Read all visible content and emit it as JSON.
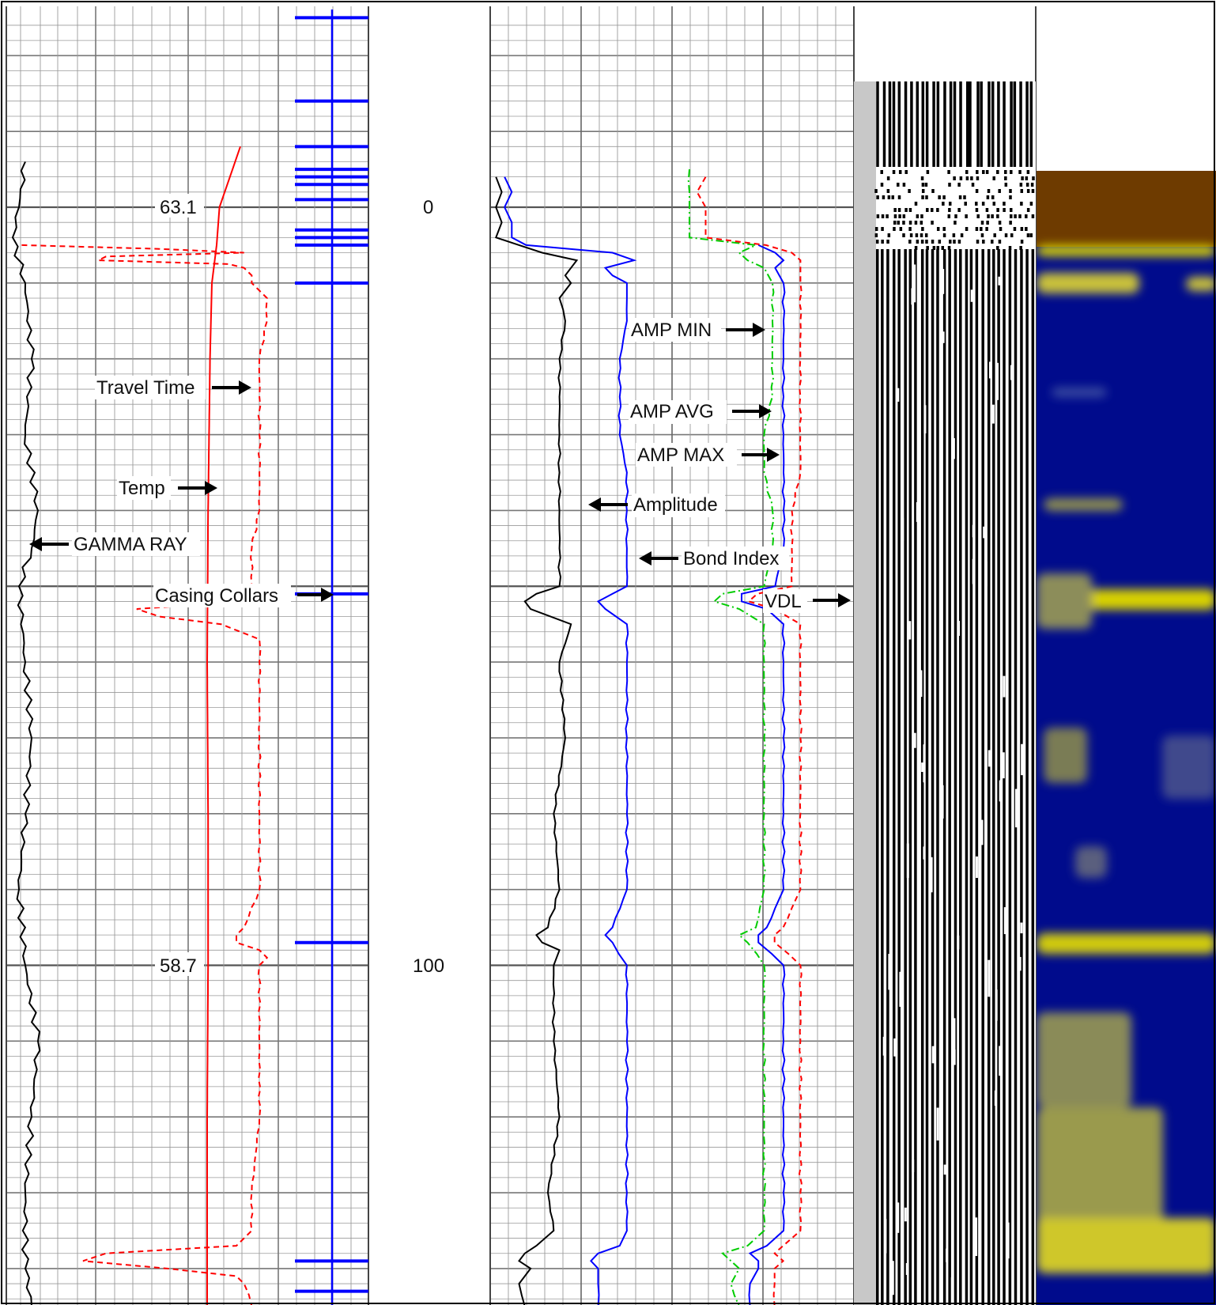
{
  "chart_data": {
    "type": "line",
    "title": "",
    "depth_scale": {
      "labels": [
        "0",
        "100"
      ],
      "depths": [
        0,
        100
      ]
    },
    "temperature_scale": {
      "labels": [
        "63.1",
        "58.7"
      ],
      "values": [
        63.1,
        58.7
      ]
    },
    "annotations": [
      "Travel Time",
      "Temp",
      "GAMMA RAY",
      "Casing Collars",
      "AMP MIN",
      "AMP AVG",
      "AMP MAX",
      "Amplitude",
      "Bond Index",
      "VDL"
    ],
    "casing_collar_depths": [
      -25,
      -14,
      -8,
      -5,
      -4,
      -3,
      -1,
      3,
      4,
      5,
      10,
      51,
      97,
      139,
      143
    ],
    "series": [
      {
        "name": "GAMMA RAY",
        "color": "#000000",
        "style": "solid",
        "depths": [
          -6,
          0,
          4,
          10,
          20,
          30,
          40,
          45,
          50,
          60,
          70,
          80,
          90,
          100,
          110,
          120,
          130,
          140,
          145
        ],
        "values": [
          3,
          2,
          1,
          3,
          4,
          3,
          5,
          4,
          2,
          3,
          4,
          3,
          2,
          3,
          5,
          4,
          3,
          3,
          4
        ]
      },
      {
        "name": "Temp",
        "color": "#ff0000",
        "style": "solid",
        "depths": [
          -8,
          0,
          5,
          10,
          20,
          40,
          60,
          80,
          100,
          120,
          140,
          145
        ],
        "values": [
          65.3,
          63.1,
          62.8,
          62.3,
          62.1,
          61.9,
          61.8,
          61.9,
          61.9,
          61.8,
          61.8,
          61.8
        ]
      },
      {
        "name": "Travel Time",
        "color": "#ff0000",
        "style": "dashed",
        "depths": [
          5,
          5.5,
          6,
          6.5,
          7,
          7.5,
          8,
          9,
          10,
          12,
          15,
          20,
          25,
          30,
          35,
          40,
          45,
          50,
          52,
          53,
          54,
          55,
          57,
          60,
          70,
          80,
          90,
          95,
          96,
          97,
          98,
          99,
          100,
          110,
          120,
          130,
          135,
          137,
          138,
          139,
          140,
          141,
          142,
          145
        ],
        "values": [
          2,
          20,
          31,
          13,
          12,
          29,
          31,
          32,
          32,
          34,
          34,
          33,
          33,
          33,
          33,
          33,
          32,
          32,
          31,
          17,
          20,
          28,
          33,
          33,
          33,
          33,
          33,
          31,
          30,
          30,
          33,
          34,
          33,
          33,
          33,
          32,
          32,
          30,
          13,
          10,
          21,
          30,
          31,
          32
        ]
      },
      {
        "name": "Amplitude",
        "color": "#000000",
        "style": "solid",
        "depths": [
          -4,
          -2,
          0,
          2,
          4,
          5,
          6,
          7,
          8,
          9,
          10,
          12,
          15,
          20,
          25,
          30,
          35,
          40,
          45,
          50,
          51,
          52,
          53,
          55,
          60,
          70,
          80,
          90,
          95,
          96,
          97,
          98,
          100,
          110,
          120,
          130,
          135,
          137,
          138,
          139,
          140,
          141,
          142,
          145
        ],
        "values": [
          1,
          2,
          1,
          2,
          1,
          5,
          9,
          15,
          14,
          13,
          14,
          12,
          13,
          12,
          12,
          12,
          12,
          12,
          12,
          12,
          8,
          6,
          7,
          14,
          12,
          13,
          11,
          12,
          10,
          8,
          9,
          12,
          11,
          11,
          12,
          10,
          11,
          8,
          6,
          5,
          7,
          6,
          5,
          6
        ]
      },
      {
        "name": "Bond Index",
        "color": "#0000ff",
        "style": "solid",
        "depths": [
          -4,
          -2,
          0,
          2,
          4,
          5,
          6,
          7,
          8,
          9,
          10,
          12,
          15,
          20,
          25,
          30,
          35,
          40,
          45,
          50,
          51,
          52,
          53,
          55,
          60,
          70,
          80,
          90,
          95,
          96,
          97,
          100,
          110,
          120,
          130,
          135,
          137,
          138,
          139,
          140,
          141,
          142,
          145
        ],
        "values": [
          2,
          3,
          2,
          3,
          3,
          5,
          17,
          20,
          16,
          17,
          19,
          19,
          19,
          18,
          18,
          18,
          19,
          19,
          19,
          19,
          17,
          15,
          16,
          19,
          19,
          19,
          19,
          19,
          17,
          16,
          17,
          19,
          19,
          19,
          19,
          19,
          18,
          15,
          14,
          15,
          15,
          15,
          15
        ]
      },
      {
        "name": "AMP MIN",
        "color": "#00cc00",
        "style": "dashdot",
        "depths": [
          -5,
          -2,
          0,
          2,
          4,
          5,
          6,
          7,
          8,
          10,
          15,
          20,
          25,
          30,
          35,
          40,
          45,
          50,
          51,
          52,
          53,
          55,
          60,
          70,
          80,
          90,
          95,
          96,
          97,
          100,
          110,
          120,
          130,
          135,
          137,
          138,
          139,
          140,
          142,
          145
        ],
        "values": [
          24,
          24,
          24,
          24,
          24,
          32,
          30,
          31,
          33,
          34,
          34,
          34,
          34,
          33,
          33,
          34,
          34,
          33,
          28,
          27,
          30,
          33,
          33,
          33,
          33,
          33,
          32,
          30,
          31,
          33,
          33,
          33,
          33,
          33,
          31,
          28,
          29,
          30,
          29,
          30
        ]
      },
      {
        "name": "AMP AVG",
        "color": "#0000ff",
        "style": "solid",
        "depths": [
          5,
          6,
          7,
          8,
          10,
          15,
          20,
          25,
          30,
          35,
          40,
          45,
          50,
          51,
          52,
          53,
          55,
          60,
          70,
          80,
          90,
          95,
          96,
          97,
          100,
          110,
          120,
          130,
          135,
          137,
          138,
          139,
          140,
          142,
          145
        ],
        "values": [
          32,
          34,
          35,
          34,
          35,
          35,
          35,
          35,
          35,
          35,
          35,
          35,
          34,
          30,
          30,
          33,
          35,
          35,
          35,
          35,
          35,
          33,
          32,
          32,
          35,
          35,
          35,
          35,
          35,
          33,
          31,
          32,
          32,
          31,
          31
        ]
      },
      {
        "name": "AMP MAX",
        "color": "#ff0000",
        "style": "dashed",
        "depths": [
          -4,
          -2,
          0,
          2,
          4,
          5,
          6,
          7,
          8,
          10,
          15,
          20,
          25,
          30,
          35,
          40,
          45,
          50,
          51,
          52,
          53,
          55,
          60,
          70,
          80,
          90,
          95,
          96,
          97,
          100,
          110,
          120,
          130,
          135,
          137,
          138,
          139,
          140,
          142,
          145
        ],
        "values": [
          25,
          24,
          25,
          25,
          25,
          32,
          35,
          36,
          36,
          36,
          36,
          36,
          36,
          36,
          36,
          35,
          35,
          35,
          31,
          30,
          33,
          36,
          36,
          36,
          36,
          36,
          34,
          33,
          33,
          36,
          36,
          36,
          36,
          36,
          34,
          33,
          34,
          33,
          33,
          33
        ]
      }
    ]
  }
}
